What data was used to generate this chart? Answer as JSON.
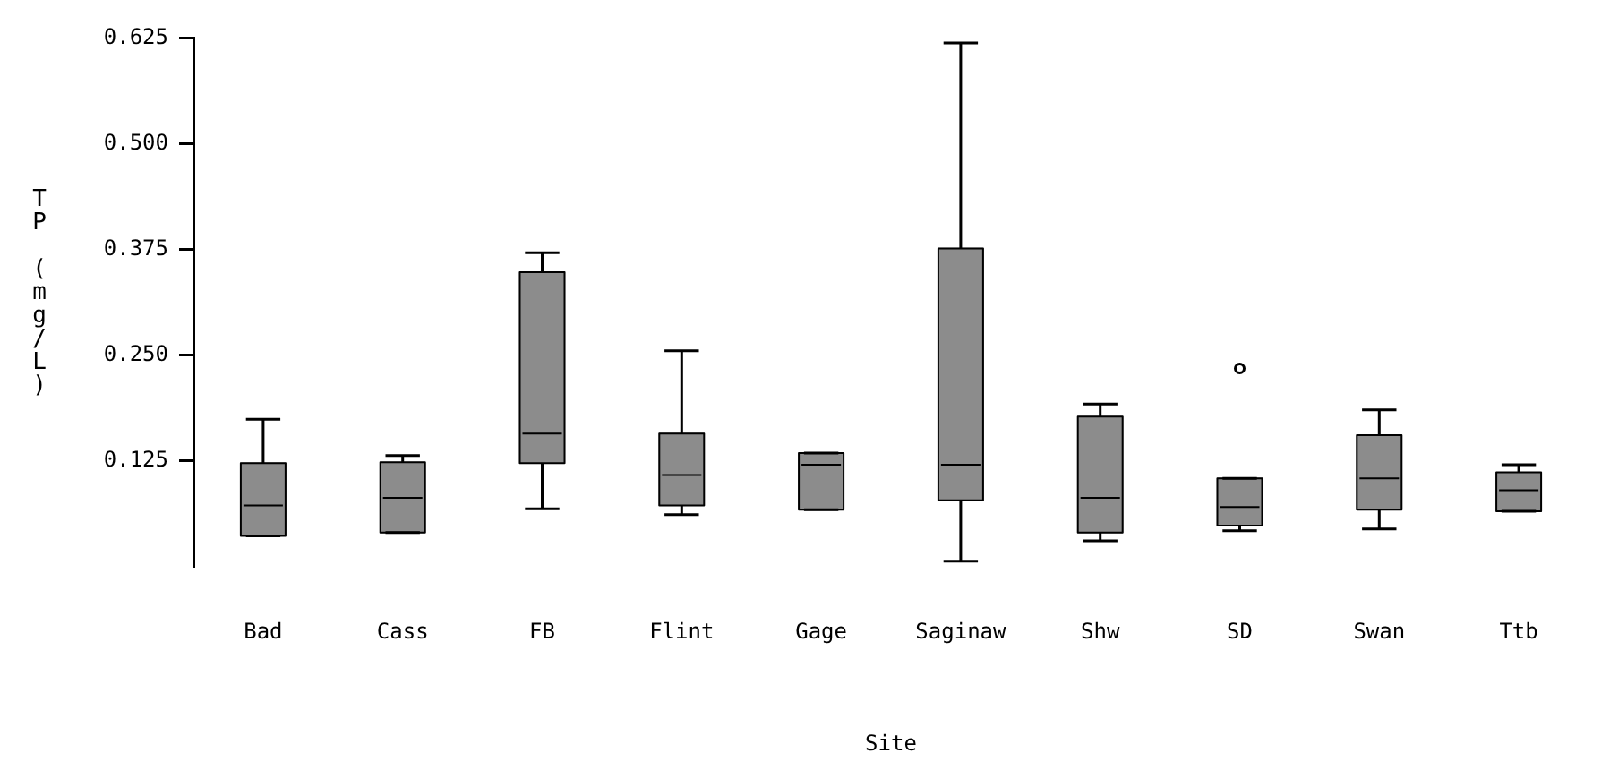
{
  "chart_data": {
    "type": "box",
    "xlabel": "Site",
    "ylabel": "TP (mg/L)",
    "color": "#8c8c8c",
    "categories": [
      "Bad",
      "Cass",
      "FB",
      "Flint",
      "Gage",
      "Saginaw",
      "Shw",
      "SD",
      "Swan",
      "Ttb"
    ],
    "boxes": [
      {
        "low": 0.036,
        "q1": 0.036,
        "median": 0.072,
        "q3": 0.122,
        "high": 0.174
      },
      {
        "low": 0.04,
        "q1": 0.04,
        "median": 0.081,
        "q3": 0.123,
        "high": 0.131
      },
      {
        "low": 0.068,
        "q1": 0.122,
        "median": 0.157,
        "q3": 0.348,
        "high": 0.371
      },
      {
        "low": 0.061,
        "q1": 0.072,
        "median": 0.108,
        "q3": 0.157,
        "high": 0.255
      },
      {
        "low": 0.067,
        "q1": 0.067,
        "median": 0.12,
        "q3": 0.134,
        "high": 0.134
      },
      {
        "low": 0.006,
        "q1": 0.078,
        "median": 0.12,
        "q3": 0.376,
        "high": 0.619
      },
      {
        "low": 0.03,
        "q1": 0.04,
        "median": 0.081,
        "q3": 0.177,
        "high": 0.192
      },
      {
        "low": 0.042,
        "q1": 0.048,
        "median": 0.07,
        "q3": 0.104,
        "high": 0.104,
        "outliers": [
          0.234
        ]
      },
      {
        "low": 0.044,
        "q1": 0.067,
        "median": 0.104,
        "q3": 0.155,
        "high": 0.185
      },
      {
        "low": 0.065,
        "q1": 0.065,
        "median": 0.09,
        "q3": 0.111,
        "high": 0.12
      }
    ],
    "ylim": [
      0,
      0.625
    ],
    "yticks": [
      {
        "value": 0.125,
        "label": "0.125"
      },
      {
        "value": 0.25,
        "label": "0.250"
      },
      {
        "value": 0.375,
        "label": "0.375"
      },
      {
        "value": 0.5,
        "label": "0.500"
      },
      {
        "value": 0.625,
        "label": "0.625"
      }
    ]
  }
}
